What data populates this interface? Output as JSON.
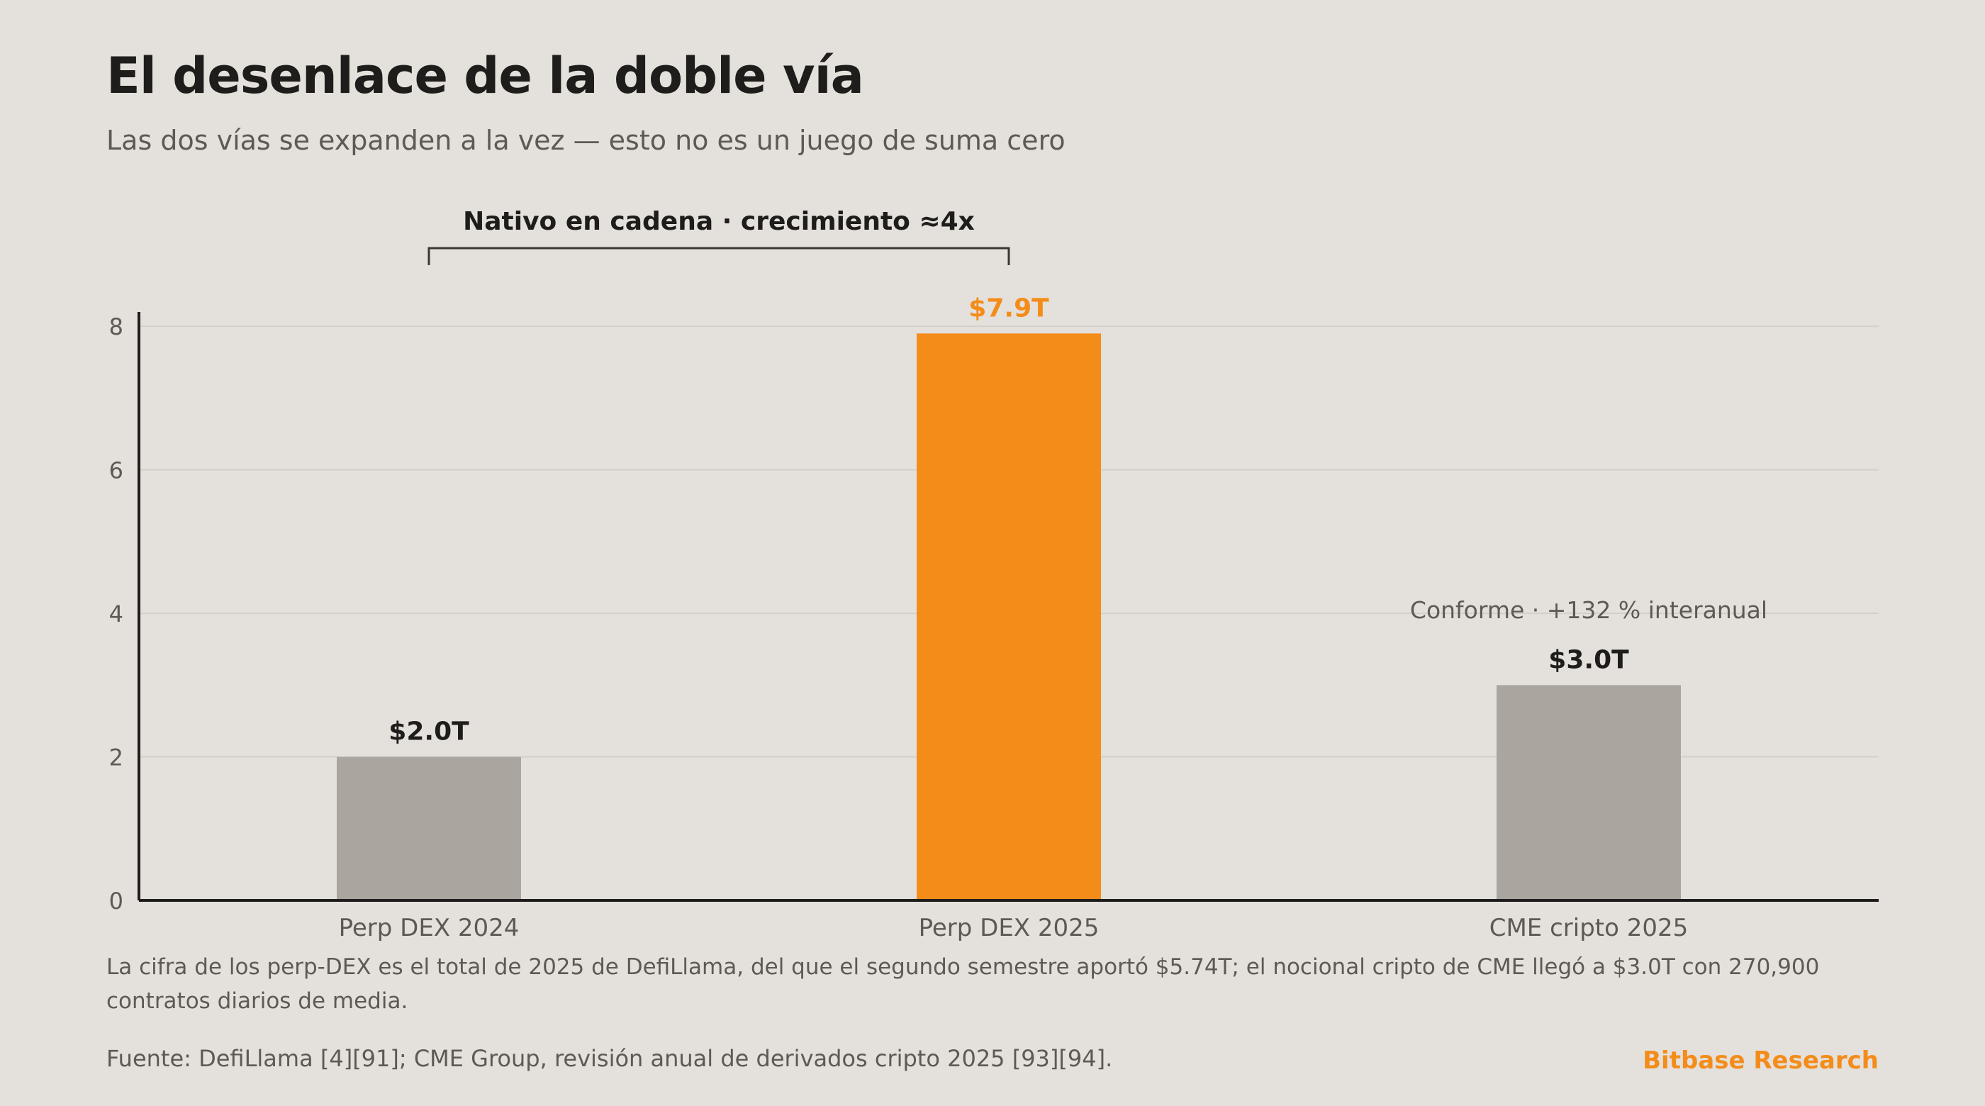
{
  "header": {
    "title": "El desenlace de la doble vía",
    "subtitle": "Las dos vías se expanden a la vez — esto no es un juego de suma cero"
  },
  "chart_data": {
    "type": "bar",
    "categories": [
      "Perp DEX 2024",
      "Perp DEX 2025",
      "CME cripto 2025"
    ],
    "values": [
      2.0,
      7.9,
      3.0
    ],
    "value_labels": [
      "$2.0T",
      "$7.9T",
      "$3.0T"
    ],
    "highlight_index": 1,
    "colors": {
      "default": "#aaa59f",
      "highlight": "#f48c1a",
      "axis": "#1e1d1b",
      "grid": "#d3cfc9"
    },
    "ylim": [
      0,
      8.2
    ],
    "yticks": [
      0,
      2,
      4,
      6,
      8
    ],
    "grid": true,
    "xlabel": "",
    "ylabel": "",
    "annotations": {
      "bracket": {
        "text": "Nativo en cadena · crecimiento ≈4x",
        "from_category": "Perp DEX 2024",
        "to_category": "Perp DEX 2025"
      },
      "cme_note": {
        "text": "Conforme · +132 % interanual",
        "category": "CME cripto 2025"
      }
    }
  },
  "footer": {
    "note": "La cifra de los perp-DEX es el total de 2025 de DefiLlama, del que el segundo semestre aportó $5.74T; el nocional cripto de CME llegó a $3.0T con 270,900 contratos diarios de media.",
    "source": "Fuente: DefiLlama [4][91]; CME Group, revisión anual de derivados cripto 2025 [93][94].",
    "brand": "Bitbase Research"
  }
}
